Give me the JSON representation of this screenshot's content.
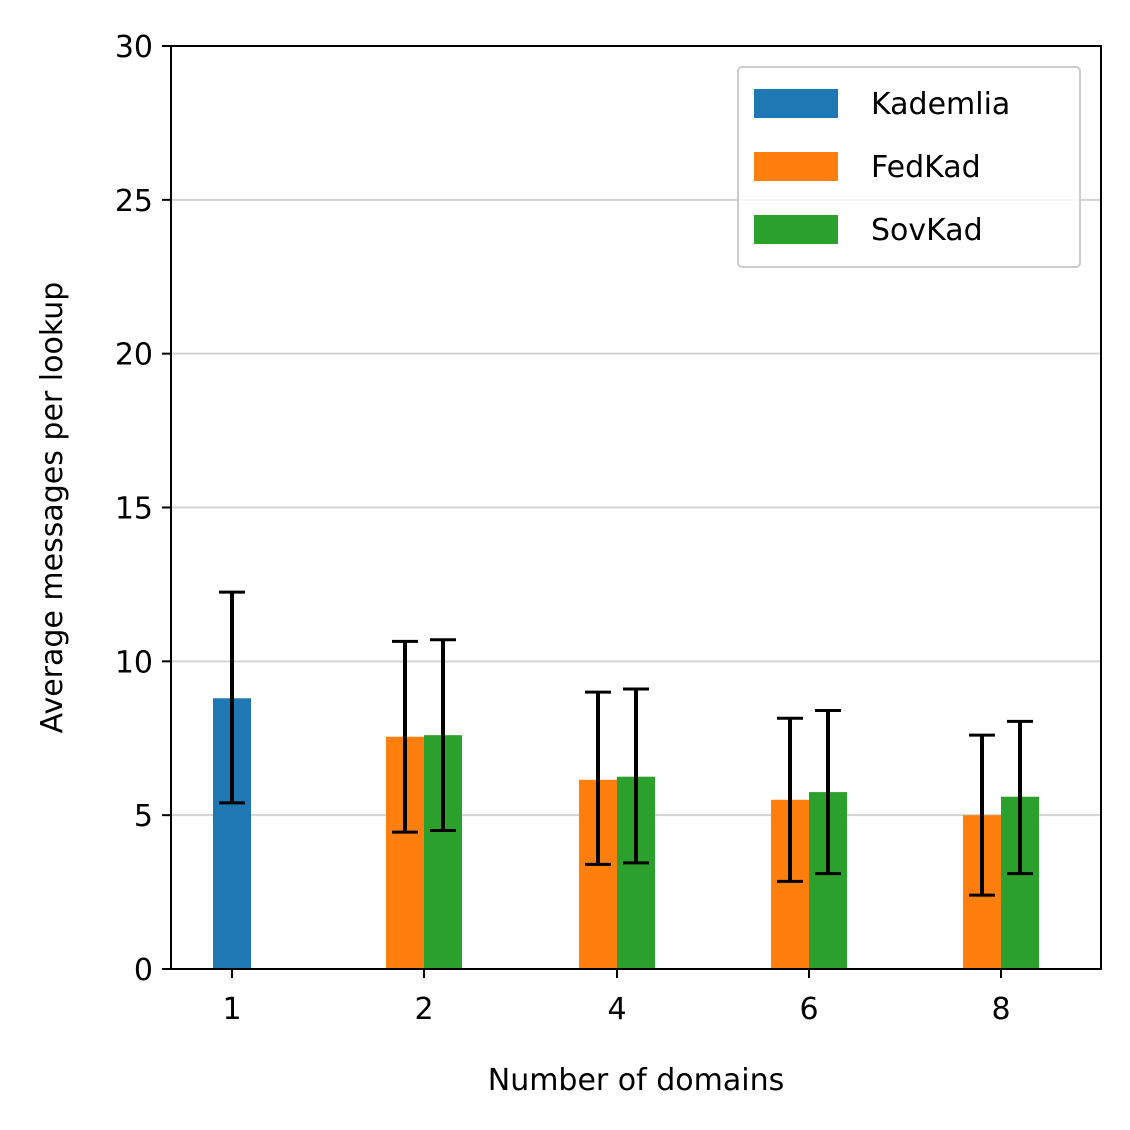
{
  "chart_data": {
    "type": "bar",
    "categories": [
      "1",
      "2",
      "4",
      "6",
      "8"
    ],
    "xlabel": "Number of domains",
    "ylabel": "Average messages per lookup",
    "ylim": [
      0,
      30
    ],
    "yticks": [
      0,
      5,
      10,
      15,
      20,
      25,
      30
    ],
    "grid": "horizontal",
    "legend_position": "top-right",
    "series": [
      {
        "name": "Kademlia",
        "color": "#1f77b4",
        "values": [
          8.8,
          null,
          null,
          null,
          null
        ],
        "err_low": [
          5.4,
          null,
          null,
          null,
          null
        ],
        "err_high": [
          12.25,
          null,
          null,
          null,
          null
        ]
      },
      {
        "name": "FedKad",
        "color": "#ff7f0e",
        "values": [
          null,
          7.55,
          6.15,
          5.5,
          5.0
        ],
        "err_low": [
          null,
          4.45,
          3.4,
          2.85,
          2.4
        ],
        "err_high": [
          null,
          10.65,
          9.0,
          8.15,
          7.6
        ]
      },
      {
        "name": "SovKad",
        "color": "#2ca02c",
        "values": [
          null,
          7.6,
          6.25,
          5.75,
          5.6
        ],
        "err_low": [
          null,
          4.5,
          3.45,
          3.1,
          3.1
        ],
        "err_high": [
          null,
          10.7,
          9.1,
          8.4,
          8.05
        ]
      }
    ]
  }
}
